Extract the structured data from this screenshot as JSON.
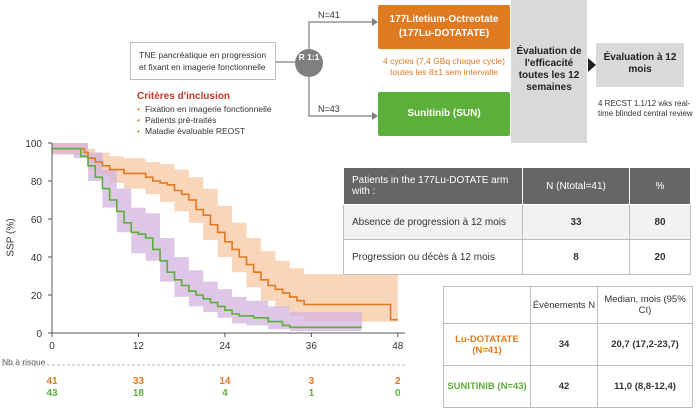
{
  "schema": {
    "inclusion_box": "TNE pancréatique en progression et fixant en imagerie fonctionnelle",
    "randomization": "R 1:1",
    "n_lu": "N=41",
    "n_sun": "N=43",
    "arm_lu_line1": "177Litetium-Octreotate",
    "arm_lu_line2": "(177Lu-DOTATATE)",
    "dose_line1": "4 cycles (7,4 GBq chaque cycle)",
    "dose_line2": "toutes les 8±1 sem intervalle",
    "arm_sun": "Sunitinib (SUN)",
    "eval1": "Évaluation de l'efficacité toutes les 12 semaines",
    "eval2": "Évaluation à 12 mois",
    "recist": "4 RECST 1.1/12 wks real-time blinded central review",
    "criteria_title": "Critères d'inclusion",
    "criteria": [
      "Fixation en imagerie fonctionnelle",
      "Patients pré-traités",
      "Maladie évaluable REOST"
    ]
  },
  "table1": {
    "headers": [
      "Patients in the 177Lu-DOTATE arm with :",
      "N (Ntotal=41)",
      "%"
    ],
    "rows": [
      [
        "Absence de progression à 12 mois",
        "33",
        "80"
      ],
      [
        "Progression ou décès à 12 mois",
        "8",
        "20"
      ]
    ]
  },
  "table2": {
    "headers": [
      "",
      "Évènements N",
      "Median, mois (95% CI)"
    ],
    "rows": [
      [
        "Lu-DOTATATE (N=41)",
        "34",
        "20,7 (17,2-23,7)"
      ],
      [
        "SUNITINIB (N=43)",
        "42",
        "11,0 (8,8-12,4)"
      ]
    ]
  },
  "risk": {
    "title": "Nb à risque",
    "lu": [
      "41",
      "33",
      "14",
      "3",
      "2"
    ],
    "sun": [
      "43",
      "18",
      "4",
      "1",
      "0"
    ]
  },
  "colors": {
    "lu": "#e07a21",
    "sun": "#5daf3b",
    "lu_band": "#f7c7a3",
    "sun_band": "#d2b3de"
  },
  "chart_data": {
    "type": "line",
    "ylabel": "SSP (%)",
    "xlim": [
      0,
      49
    ],
    "ylim": [
      0,
      100
    ],
    "xticks": [
      0,
      12,
      24,
      36,
      48
    ],
    "xtick_labels": [
      "0",
      "12",
      "24",
      "36",
      "48"
    ],
    "yticks": [
      0,
      20,
      40,
      60,
      80,
      100
    ],
    "series": [
      {
        "name": "Lu-DOTATATE",
        "steps": [
          [
            0,
            97
          ],
          [
            4,
            97
          ],
          [
            4.5,
            95
          ],
          [
            5,
            92
          ],
          [
            6,
            90
          ],
          [
            7,
            88
          ],
          [
            8,
            86
          ],
          [
            10,
            84
          ],
          [
            13,
            82
          ],
          [
            14,
            80
          ],
          [
            15,
            79
          ],
          [
            16,
            78
          ],
          [
            17,
            75
          ],
          [
            18,
            73
          ],
          [
            19,
            70
          ],
          [
            20,
            65
          ],
          [
            21,
            62
          ],
          [
            22,
            57
          ],
          [
            23,
            53
          ],
          [
            24,
            48
          ],
          [
            25,
            44
          ],
          [
            26,
            40
          ],
          [
            27,
            36
          ],
          [
            28,
            32
          ],
          [
            29,
            28
          ],
          [
            30,
            25
          ],
          [
            31,
            23
          ],
          [
            32,
            21
          ],
          [
            33,
            19
          ],
          [
            34,
            17
          ],
          [
            35,
            15
          ],
          [
            47,
            15
          ],
          [
            47,
            7
          ],
          [
            48,
            7
          ]
        ],
        "lower": [
          [
            0,
            94
          ],
          [
            4,
            94
          ],
          [
            5,
            86
          ],
          [
            6,
            83
          ],
          [
            8,
            79
          ],
          [
            10,
            76
          ],
          [
            13,
            73
          ],
          [
            15,
            69
          ],
          [
            17,
            64
          ],
          [
            19,
            58
          ],
          [
            21,
            49
          ],
          [
            23,
            40
          ],
          [
            25,
            32
          ],
          [
            27,
            24
          ],
          [
            29,
            17
          ],
          [
            31,
            13
          ],
          [
            33,
            9
          ],
          [
            35,
            6
          ],
          [
            47,
            6
          ],
          [
            48,
            2
          ]
        ],
        "upper": [
          [
            0,
            100
          ],
          [
            4,
            100
          ],
          [
            5,
            97
          ],
          [
            6,
            95
          ],
          [
            8,
            93
          ],
          [
            10,
            92
          ],
          [
            13,
            90
          ],
          [
            15,
            89
          ],
          [
            17,
            86
          ],
          [
            19,
            82
          ],
          [
            21,
            76
          ],
          [
            23,
            67
          ],
          [
            25,
            58
          ],
          [
            27,
            50
          ],
          [
            29,
            43
          ],
          [
            31,
            38
          ],
          [
            33,
            34
          ],
          [
            35,
            31
          ],
          [
            47,
            31
          ],
          [
            48,
            22
          ]
        ]
      },
      {
        "name": "Sunitinib",
        "steps": [
          [
            0,
            97
          ],
          [
            3,
            97
          ],
          [
            4,
            93
          ],
          [
            5,
            88
          ],
          [
            6,
            82
          ],
          [
            7,
            76
          ],
          [
            8,
            70
          ],
          [
            9,
            64
          ],
          [
            10,
            58
          ],
          [
            11,
            53
          ],
          [
            12,
            52
          ],
          [
            13,
            50
          ],
          [
            14,
            44
          ],
          [
            15,
            38
          ],
          [
            16,
            32
          ],
          [
            17,
            28
          ],
          [
            18,
            25
          ],
          [
            19,
            22
          ],
          [
            20,
            20
          ],
          [
            21,
            18
          ],
          [
            22,
            16
          ],
          [
            23,
            14
          ],
          [
            24,
            12
          ],
          [
            25,
            10
          ],
          [
            26,
            9
          ],
          [
            28,
            8
          ],
          [
            30,
            6
          ],
          [
            32,
            4
          ],
          [
            33,
            3
          ],
          [
            43,
            3
          ]
        ],
        "lower": [
          [
            0,
            94
          ],
          [
            3,
            92
          ],
          [
            5,
            80
          ],
          [
            7,
            66
          ],
          [
            9,
            53
          ],
          [
            11,
            42
          ],
          [
            13,
            38
          ],
          [
            15,
            27
          ],
          [
            17,
            19
          ],
          [
            19,
            14
          ],
          [
            21,
            11
          ],
          [
            23,
            8
          ],
          [
            25,
            5
          ],
          [
            27,
            4
          ],
          [
            30,
            2
          ],
          [
            33,
            1
          ],
          [
            43,
            1
          ]
        ],
        "upper": [
          [
            0,
            100
          ],
          [
            3,
            100
          ],
          [
            5,
            95
          ],
          [
            7,
            86
          ],
          [
            9,
            76
          ],
          [
            11,
            66
          ],
          [
            13,
            63
          ],
          [
            15,
            50
          ],
          [
            17,
            40
          ],
          [
            19,
            33
          ],
          [
            21,
            27
          ],
          [
            23,
            23
          ],
          [
            25,
            19
          ],
          [
            27,
            17
          ],
          [
            30,
            14
          ],
          [
            33,
            11
          ],
          [
            43,
            11
          ]
        ]
      }
    ]
  }
}
